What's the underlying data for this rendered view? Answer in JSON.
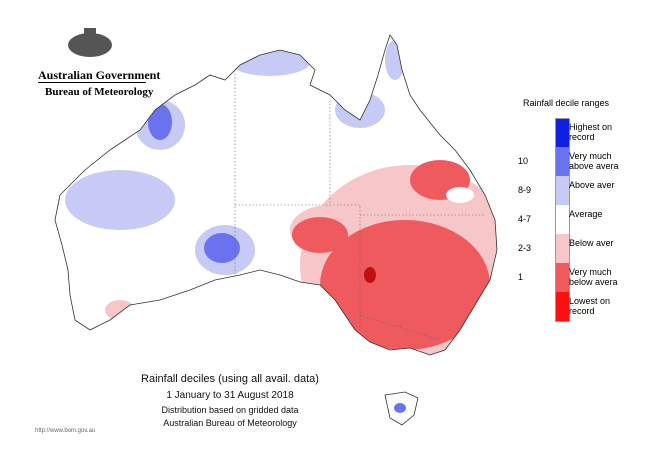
{
  "header": {
    "agency": "Australian Government",
    "bureau": "Bureau of Meteorology"
  },
  "legend": {
    "title": "Rainfall decile ranges",
    "items": [
      {
        "decile": null,
        "label": "Highest on record",
        "color": "#1020e0"
      },
      {
        "decile": "10",
        "label": "Very much above avera",
        "color": "#6a72ee"
      },
      {
        "decile": "8-9",
        "label": "Above aver",
        "color": "#c6caf4"
      },
      {
        "decile": "4-7",
        "label": "Average",
        "color": "#ffffff"
      },
      {
        "decile": "2-3",
        "label": "Below aver",
        "color": "#f7c6c8"
      },
      {
        "decile": "1",
        "label": "Very much below avera",
        "color": "#ee5a5e"
      },
      {
        "decile": null,
        "label": "Lowest on record",
        "color": "#fa1010"
      }
    ]
  },
  "caption": {
    "title": "Rainfall deciles (using all avail. data)",
    "period": "1 January to 31 August 2018",
    "note": "Distribution based on gridded data",
    "source": "Australian Bureau of Meteorology"
  },
  "footer": {
    "url": "http://www.bom.gov.au"
  }
}
